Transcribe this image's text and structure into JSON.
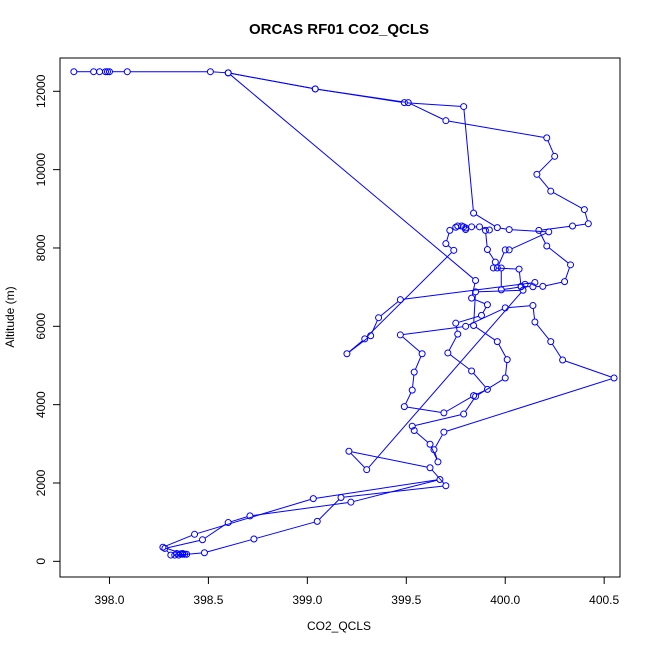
{
  "chart_data": {
    "type": "line",
    "title": "ORCAS RF01 CO2_QCLS",
    "xlabel": "CO2_QCLS",
    "ylabel": "Altitude (m)",
    "xlim": [
      397.75,
      400.58
    ],
    "ylim": [
      -400,
      12850
    ],
    "x_ticks": [
      398.0,
      398.5,
      399.0,
      399.5,
      400.0,
      400.5
    ],
    "x_tick_labels": [
      "398.0",
      "398.5",
      "399.0",
      "399.5",
      "400.0",
      "400.5"
    ],
    "y_ticks": [
      0,
      2000,
      4000,
      6000,
      8000,
      10000,
      12000
    ],
    "y_tick_labels": [
      "0",
      "2000",
      "4000",
      "6000",
      "8000",
      "10000",
      "12000"
    ],
    "grid": false,
    "legend": "none",
    "series": [
      {
        "color": "#0000ff",
        "marker": "open-circle",
        "points": [
          [
            397.82,
            12500
          ],
          [
            397.92,
            12500
          ],
          [
            397.95,
            12500
          ],
          [
            397.98,
            12500
          ],
          [
            397.99,
            12500
          ],
          [
            398.0,
            12500
          ],
          [
            398.09,
            12500
          ],
          [
            398.51,
            12500
          ],
          [
            398.6,
            12470
          ],
          [
            399.04,
            12060
          ],
          [
            399.49,
            11710
          ],
          [
            399.79,
            11610
          ],
          [
            399.84,
            8890
          ],
          [
            399.96,
            8520
          ],
          [
            400.02,
            8470
          ],
          [
            400.22,
            8410
          ],
          [
            400.02,
            7950
          ],
          [
            400.0,
            7950
          ],
          [
            399.96,
            7490
          ],
          [
            399.98,
            7490
          ],
          [
            399.98,
            6930
          ],
          [
            400.08,
            7010
          ],
          [
            400.1,
            7070
          ],
          [
            400.15,
            7120
          ],
          [
            399.47,
            6680
          ],
          [
            399.36,
            6220
          ],
          [
            399.32,
            5760
          ],
          [
            399.2,
            5300
          ],
          [
            399.29,
            5680
          ],
          [
            399.74,
            7940
          ],
          [
            399.7,
            8110
          ],
          [
            399.72,
            8450
          ],
          [
            399.75,
            8530
          ],
          [
            399.76,
            8560
          ],
          [
            399.78,
            8560
          ],
          [
            399.79,
            8540
          ],
          [
            399.8,
            8510
          ],
          [
            399.8,
            8470
          ],
          [
            399.83,
            8540
          ],
          [
            399.87,
            8540
          ],
          [
            399.92,
            8460
          ],
          [
            399.9,
            8450
          ],
          [
            399.91,
            7960
          ],
          [
            399.95,
            7640
          ],
          [
            399.94,
            7490
          ],
          [
            400.07,
            7460
          ],
          [
            400.08,
            7020
          ],
          [
            400.14,
            7010
          ],
          [
            400.19,
            7020
          ],
          [
            400.3,
            7140
          ],
          [
            400.33,
            7570
          ],
          [
            400.21,
            8050
          ],
          [
            400.17,
            8450
          ],
          [
            400.34,
            8560
          ],
          [
            400.42,
            8620
          ],
          [
            400.4,
            8980
          ],
          [
            400.23,
            9450
          ],
          [
            400.16,
            9880
          ],
          [
            400.25,
            10340
          ],
          [
            400.21,
            10810
          ],
          [
            399.7,
            11250
          ],
          [
            399.51,
            11710
          ],
          [
            399.04,
            12060
          ],
          [
            398.6,
            12470
          ],
          [
            399.85,
            7170
          ],
          [
            399.83,
            6720
          ],
          [
            399.91,
            6550
          ],
          [
            399.88,
            6280
          ],
          [
            399.75,
            6080
          ],
          [
            399.76,
            5800
          ],
          [
            399.71,
            5320
          ],
          [
            399.83,
            4860
          ],
          [
            399.91,
            4390
          ],
          [
            399.84,
            4230
          ],
          [
            399.69,
            3790
          ],
          [
            399.49,
            3950
          ],
          [
            399.53,
            4370
          ],
          [
            399.54,
            4830
          ],
          [
            399.58,
            5300
          ],
          [
            399.47,
            5780
          ],
          [
            399.8,
            6000
          ],
          [
            400.0,
            6470
          ],
          [
            400.14,
            6530
          ],
          [
            400.15,
            6110
          ],
          [
            400.23,
            5610
          ],
          [
            400.29,
            5140
          ],
          [
            400.55,
            4680
          ],
          [
            399.69,
            3300
          ],
          [
            399.64,
            2850
          ],
          [
            399.66,
            2540
          ],
          [
            399.62,
            2990
          ],
          [
            399.54,
            3340
          ],
          [
            399.53,
            3450
          ],
          [
            399.79,
            3760
          ],
          [
            399.85,
            4210
          ],
          [
            400.0,
            4680
          ],
          [
            400.01,
            5150
          ],
          [
            399.96,
            5610
          ],
          [
            399.84,
            6020
          ],
          [
            399.85,
            6880
          ],
          [
            400.09,
            6920
          ],
          [
            399.3,
            2340
          ],
          [
            399.21,
            2810
          ],
          [
            399.62,
            2390
          ],
          [
            399.7,
            1930
          ],
          [
            399.17,
            1630
          ],
          [
            399.05,
            1020
          ],
          [
            398.73,
            570
          ],
          [
            398.48,
            220
          ],
          [
            398.35,
            160
          ],
          [
            398.33,
            160
          ],
          [
            398.34,
            200
          ],
          [
            398.36,
            190
          ],
          [
            398.37,
            180
          ],
          [
            398.37,
            200
          ],
          [
            398.39,
            180
          ],
          [
            398.31,
            160
          ],
          [
            398.28,
            330
          ],
          [
            398.47,
            550
          ],
          [
            398.6,
            990
          ],
          [
            398.71,
            1160
          ],
          [
            399.22,
            1510
          ],
          [
            399.67,
            2090
          ],
          [
            399.03,
            1600
          ],
          [
            398.43,
            690
          ],
          [
            398.27,
            360
          ],
          [
            398.38,
            180
          ]
        ]
      }
    ]
  }
}
